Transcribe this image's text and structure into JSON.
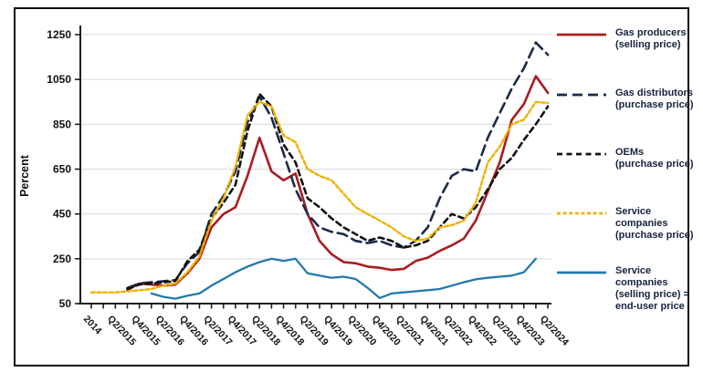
{
  "figure": {
    "y_axis_title": "Percent",
    "border_color": "#0c0c0c",
    "background": "#ffffff"
  },
  "legend": {
    "position": "right",
    "items": [
      {
        "label": "Gas producers\n(selling price)"
      },
      {
        "label": "Gas distributors\n(purchase price)"
      },
      {
        "label": "OEMs\n(purchase price)"
      },
      {
        "label": "Service\ncompanies\n(purchase price)"
      },
      {
        "label": "Service\ncompanies\n(selling price) =\nend-user price"
      }
    ]
  },
  "chart_data": {
    "type": "line",
    "title": "",
    "ylabel": "Percent",
    "xlabel": "",
    "ylim": [
      50,
      1300
    ],
    "y_ticks": [
      50,
      250,
      450,
      650,
      850,
      1050,
      1250
    ],
    "grid": "horizontal-light",
    "legend_position": "right",
    "x": [
      "Q4/2014",
      "Q1/2015",
      "Q2/2015",
      "Q3/2015",
      "Q4/2015",
      "Q1/2016",
      "Q2/2016",
      "Q3/2016",
      "Q4/2016",
      "Q1/2017",
      "Q2/2017",
      "Q3/2017",
      "Q4/2017",
      "Q1/2018",
      "Q2/2018",
      "Q3/2018",
      "Q4/2018",
      "Q1/2019",
      "Q2/2019",
      "Q3/2019",
      "Q4/2019",
      "Q1/2020",
      "Q2/2020",
      "Q3/2020",
      "Q4/2020",
      "Q1/2021",
      "Q2/2021",
      "Q3/2021",
      "Q4/2021",
      "Q1/2022",
      "Q2/2022",
      "Q3/2022",
      "Q4/2022",
      "Q1/2023",
      "Q2/2023",
      "Q3/2023",
      "Q4/2023",
      "Q1/2024",
      "Q2/2024"
    ],
    "x_tick_labels": [
      "2014",
      "Q2/2015",
      "Q4/2015",
      "Q2/2016",
      "Q4/2016",
      "Q2/2017",
      "Q4/2017",
      "Q2/2018",
      "Q4/2018",
      "Q2/2019",
      "Q4/2019",
      "Q2/2020",
      "Q4/2020",
      "Q2/2021",
      "Q4/2021",
      "Q2/2022",
      "Q4/2022",
      "Q2/2023",
      "Q4/2023",
      "Q2/2024"
    ],
    "series": [
      {
        "name": "Gas producers (selling price)",
        "color": "#a81d22",
        "dash": "solid",
        "width": 2.6,
        "values": [
          null,
          null,
          null,
          110,
          140,
          135,
          130,
          135,
          185,
          250,
          390,
          450,
          480,
          620,
          790,
          640,
          600,
          630,
          450,
          330,
          270,
          235,
          230,
          215,
          210,
          200,
          205,
          240,
          255,
          285,
          310,
          340,
          420,
          550,
          680,
          870,
          940,
          1065,
          990
        ]
      },
      {
        "name": "Gas distributors (purchase price)",
        "color": "#1b2a4a",
        "dash": "long-dash",
        "width": 2.6,
        "values": [
          null,
          null,
          null,
          120,
          140,
          145,
          150,
          155,
          230,
          280,
          450,
          530,
          640,
          860,
          975,
          880,
          720,
          560,
          450,
          390,
          370,
          360,
          330,
          320,
          330,
          310,
          300,
          330,
          390,
          520,
          620,
          650,
          640,
          790,
          900,
          1010,
          1100,
          1215,
          1160
        ]
      },
      {
        "name": "OEMs (purchase price)",
        "color": "#121212",
        "dash": "dash",
        "width": 2.6,
        "values": [
          null,
          null,
          null,
          115,
          135,
          140,
          145,
          150,
          240,
          290,
          430,
          500,
          580,
          820,
          985,
          930,
          760,
          680,
          520,
          480,
          430,
          390,
          360,
          330,
          345,
          330,
          300,
          310,
          330,
          390,
          450,
          430,
          480,
          560,
          650,
          700,
          780,
          850,
          930
        ]
      },
      {
        "name": "Service companies (purchase price)",
        "color": "#eeb100",
        "dash": "short-dash",
        "width": 2.4,
        "values": [
          100,
          100,
          100,
          105,
          110,
          115,
          130,
          140,
          190,
          260,
          420,
          520,
          660,
          890,
          950,
          930,
          800,
          770,
          650,
          620,
          600,
          540,
          480,
          450,
          420,
          390,
          350,
          330,
          340,
          390,
          400,
          420,
          500,
          680,
          750,
          850,
          870,
          950,
          945
        ]
      },
      {
        "name": "Service companies (selling price) = end-user price",
        "color": "#2379ad",
        "dash": "solid",
        "width": 2.3,
        "values": [
          null,
          null,
          null,
          null,
          null,
          95,
          80,
          72,
          85,
          95,
          130,
          160,
          190,
          215,
          235,
          250,
          240,
          250,
          185,
          175,
          165,
          170,
          160,
          120,
          75,
          95,
          100,
          105,
          110,
          115,
          130,
          145,
          158,
          165,
          170,
          175,
          190,
          250,
          null
        ]
      }
    ]
  }
}
